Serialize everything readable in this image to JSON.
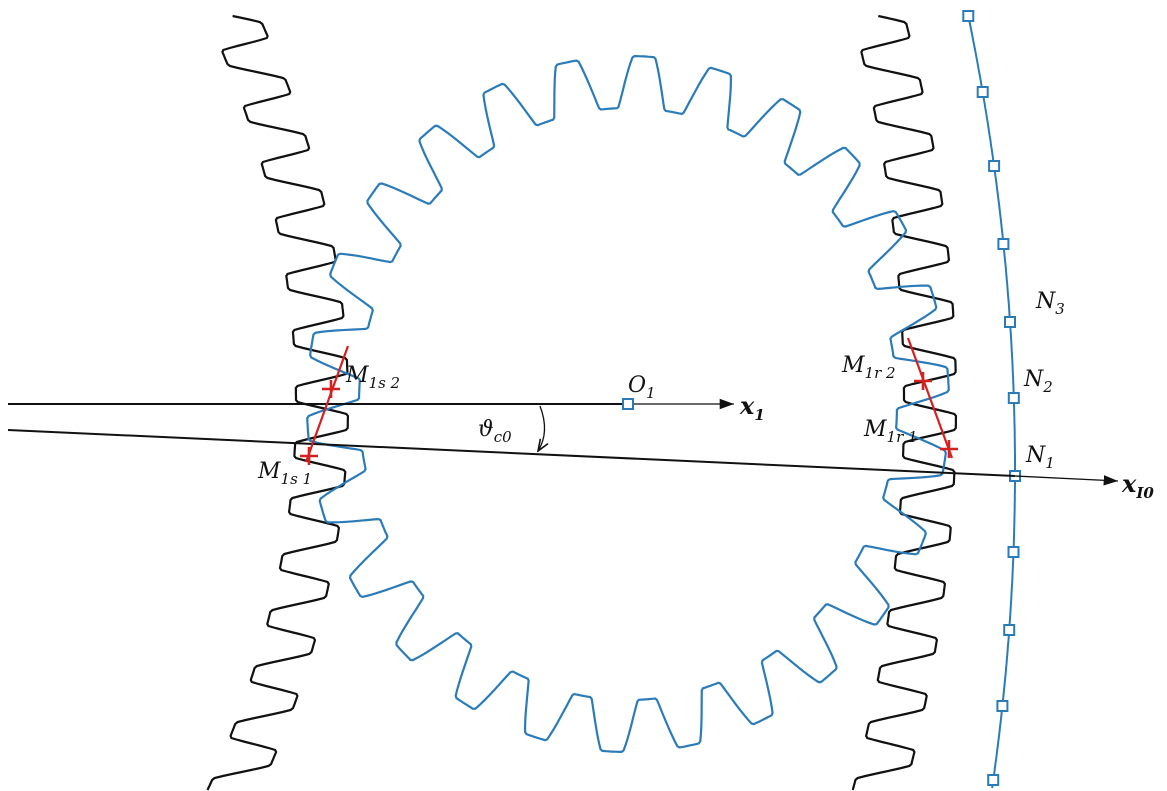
{
  "labels": {
    "o1": {
      "main": "O",
      "sub": "1"
    },
    "x1": {
      "main": "x",
      "sub": "1"
    },
    "xi0": {
      "main": "x",
      "sub": "I0"
    },
    "angle": {
      "main": "ϑ",
      "sub": "c0"
    },
    "m1s2": {
      "main": "M",
      "sub": "1s 2"
    },
    "m1s1": {
      "main": "M",
      "sub": "1s 1"
    },
    "m1r2": {
      "main": "M",
      "sub": "1r 2"
    },
    "m1r1": {
      "main": "M",
      "sub": "1r 1"
    },
    "n3": {
      "main": "N",
      "sub": "3"
    },
    "n2": {
      "main": "N",
      "sub": "2"
    },
    "n1": {
      "main": "N",
      "sub": "1"
    }
  },
  "colors": {
    "gear": "#2b7bb9",
    "rack": "#111111",
    "contact": "#d62020",
    "axis": "#111111"
  },
  "gear": {
    "teeth": 26
  }
}
